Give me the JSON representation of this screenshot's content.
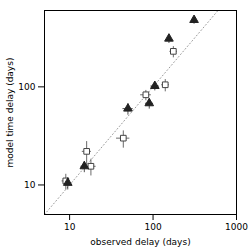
{
  "chart_data": {
    "type": "scatter",
    "xlabel": "observed delay (days)",
    "ylabel": "model time delay (days)",
    "log": true,
    "grid": false,
    "xlim": [
      5,
      1000
    ],
    "ylim": [
      5,
      600
    ],
    "xticks": [
      10,
      100,
      1000
    ],
    "yticks": [
      10,
      100
    ],
    "series": [
      {
        "type": "line",
        "line_style": "dotted",
        "color": "#999999",
        "x": [
          5,
          600
        ],
        "y": [
          5,
          600
        ]
      },
      {
        "type": "scatter",
        "marker": "open_square",
        "color": "#444444",
        "x": [
          9.0,
          16.0,
          18.0,
          44.0,
          82.0,
          140.0,
          175.0
        ],
        "y": [
          11.0,
          22.0,
          15.5,
          30.0,
          83.0,
          105.0,
          230.0
        ],
        "xerr_lo": [
          1.0,
          2.0,
          2.5,
          8.0,
          12.0,
          15.0,
          18.0
        ],
        "xerr_hi": [
          1.0,
          2.0,
          2.5,
          8.0,
          12.0,
          15.0,
          18.0
        ],
        "yerr_lo": [
          2.0,
          6.0,
          3.0,
          6.0,
          10.0,
          15.0,
          30.0
        ],
        "yerr_hi": [
          2.0,
          6.0,
          3.0,
          6.0,
          10.0,
          15.0,
          30.0
        ]
      },
      {
        "type": "scatter",
        "marker": "triangle",
        "color": "#222222",
        "x": [
          9.5,
          15.0,
          50.0,
          90.0,
          105.0,
          155.0,
          310.0
        ],
        "y": [
          10.5,
          15.5,
          60.0,
          68.0,
          102.0,
          310.0,
          480.0
        ],
        "xerr_lo": [
          0.5,
          1.5,
          7.0,
          10.0,
          12.0,
          10.0,
          15.0
        ],
        "xerr_hi": [
          0.5,
          1.5,
          7.0,
          10.0,
          12.0,
          10.0,
          15.0
        ],
        "yerr_lo": [
          1.5,
          2.0,
          8.0,
          8.0,
          10.0,
          30.0,
          40.0
        ],
        "yerr_hi": [
          1.5,
          2.0,
          8.0,
          8.0,
          10.0,
          30.0,
          40.0
        ]
      }
    ]
  }
}
